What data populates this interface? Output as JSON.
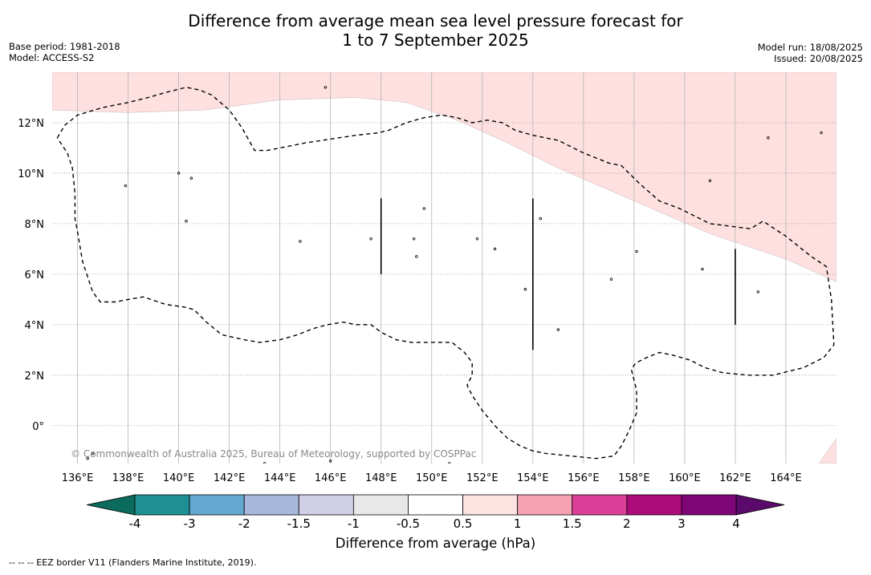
{
  "title_line1": "Difference from average mean sea level pressure forecast for",
  "title_line2": "1 to 7 September 2025",
  "base_period": "Base period: 1981-2018",
  "model": "Model: ACCESS-S2",
  "model_run": "Model run: 18/08/2025",
  "issued": "Issued: 20/08/2025",
  "copyright": "© Commonwealth of Australia 2025, Bureau of Meteorology, supported by COSPPac",
  "lon_labels": [
    "136°E",
    "138°E",
    "140°E",
    "142°E",
    "144°E",
    "146°E",
    "148°E",
    "150°E",
    "152°E",
    "154°E",
    "156°E",
    "158°E",
    "160°E",
    "162°E",
    "164°E"
  ],
  "lat_labels": [
    "12°N",
    "10°N",
    "8°N",
    "6°N",
    "4°N",
    "2°N",
    "0°"
  ],
  "colorbar": {
    "label": "Difference from average (hPa)",
    "ticks": [
      "-4",
      "-3",
      "-2",
      "-1.5",
      "-1",
      "-0.5",
      "0.5",
      "1",
      "1.5",
      "2",
      "3",
      "4"
    ],
    "colors": [
      "#1e9093",
      "#64a8d0",
      "#a7b8dc",
      "#cfd0e8",
      "#e8e8e8",
      "#ffffff",
      "#fde2e2",
      "#f7a1b4",
      "#dc3f98",
      "#ad0a7c",
      "#7e0575"
    ],
    "under_color": "#0b6b5c",
    "over_color": "#5a0a6a"
  },
  "legend_note": "--  --  -- EEZ border V11 (Flanders Marine Institute, 2019).",
  "map": {
    "lon_range": [
      135,
      166
    ],
    "lat_range": [
      -1.5,
      14
    ],
    "anomaly_fill_color": "#fde0df",
    "anomaly_region": [
      [
        135,
        12.5
      ],
      [
        138,
        12.4
      ],
      [
        141,
        12.5
      ],
      [
        144,
        12.9
      ],
      [
        147,
        13.0
      ],
      [
        149,
        12.8
      ],
      [
        151,
        12.1
      ],
      [
        153,
        11.2
      ],
      [
        155,
        10.2
      ],
      [
        158,
        8.9
      ],
      [
        161,
        7.6
      ],
      [
        164,
        6.6
      ],
      [
        166,
        5.7
      ],
      [
        166,
        14
      ],
      [
        135,
        14
      ]
    ],
    "anomaly_region_2": [
      [
        165.3,
        -1.5
      ],
      [
        166,
        -0.5
      ],
      [
        166,
        -1.5
      ]
    ],
    "eez_border": [
      [
        135.2,
        11.4
      ],
      [
        135.5,
        11.9
      ],
      [
        136,
        12.3
      ],
      [
        137,
        12.6
      ],
      [
        138,
        12.8
      ],
      [
        138.8,
        13.0
      ],
      [
        139.5,
        13.2
      ],
      [
        140.3,
        13.4
      ],
      [
        140.8,
        13.3
      ],
      [
        141.3,
        13.1
      ],
      [
        142,
        12.5
      ],
      [
        142.5,
        11.8
      ],
      [
        143,
        10.9
      ],
      [
        143.5,
        10.9
      ],
      [
        145,
        11.2
      ],
      [
        147,
        11.5
      ],
      [
        147.9,
        11.6
      ],
      [
        148.3,
        11.7
      ],
      [
        149,
        12.0
      ],
      [
        149.7,
        12.2
      ],
      [
        150.4,
        12.3
      ],
      [
        151,
        12.2
      ],
      [
        151.6,
        12.0
      ],
      [
        152.2,
        12.1
      ],
      [
        152.8,
        12.0
      ],
      [
        153.3,
        11.7
      ],
      [
        154,
        11.5
      ],
      [
        155,
        11.3
      ],
      [
        156,
        10.8
      ],
      [
        157,
        10.4
      ],
      [
        157.5,
        10.3
      ],
      [
        158.2,
        9.6
      ],
      [
        159,
        8.9
      ],
      [
        159.8,
        8.6
      ],
      [
        160.4,
        8.3
      ],
      [
        161,
        8.0
      ],
      [
        161.8,
        7.9
      ],
      [
        162.6,
        7.8
      ],
      [
        163.1,
        8.1
      ],
      [
        164,
        7.5
      ],
      [
        165,
        6.7
      ],
      [
        165.6,
        6.3
      ],
      [
        165.8,
        5.0
      ],
      [
        165.9,
        3.2
      ],
      [
        165.5,
        2.7
      ],
      [
        164.7,
        2.3
      ],
      [
        163.5,
        2.0
      ],
      [
        162.5,
        2.0
      ],
      [
        161.5,
        2.1
      ],
      [
        160.8,
        2.3
      ],
      [
        160.2,
        2.6
      ],
      [
        159.5,
        2.8
      ],
      [
        159,
        2.9
      ],
      [
        158.5,
        2.7
      ],
      [
        158.1,
        2.5
      ],
      [
        158,
        2.4
      ],
      [
        157.9,
        2.2
      ],
      [
        158.1,
        1.4
      ],
      [
        158.1,
        0.5
      ],
      [
        157.8,
        -0.2
      ],
      [
        157.5,
        -0.8
      ],
      [
        157.2,
        -1.2
      ],
      [
        156.5,
        -1.3
      ],
      [
        155.5,
        -1.2
      ],
      [
        154.5,
        -1.1
      ],
      [
        154,
        -1.0
      ],
      [
        153.5,
        -0.8
      ],
      [
        153,
        -0.5
      ],
      [
        152.5,
        -0.0
      ],
      [
        152,
        0.6
      ],
      [
        151.6,
        1.2
      ],
      [
        151.4,
        1.6
      ],
      [
        151.6,
        2.0
      ],
      [
        151.6,
        2.5
      ],
      [
        151.3,
        2.9
      ],
      [
        150.8,
        3.3
      ],
      [
        150.3,
        3.3
      ],
      [
        149.8,
        3.3
      ],
      [
        149.2,
        3.3
      ],
      [
        148.6,
        3.4
      ],
      [
        148,
        3.7
      ],
      [
        147.6,
        4.0
      ],
      [
        147,
        4.0
      ],
      [
        146.5,
        4.1
      ],
      [
        145.9,
        4.0
      ],
      [
        145.5,
        3.9
      ],
      [
        145.2,
        3.8
      ],
      [
        144.7,
        3.6
      ],
      [
        144,
        3.4
      ],
      [
        143.2,
        3.3
      ],
      [
        142.6,
        3.4
      ],
      [
        141.7,
        3.6
      ],
      [
        141.1,
        4.1
      ],
      [
        140.6,
        4.6
      ],
      [
        140.2,
        4.7
      ],
      [
        139.5,
        4.8
      ],
      [
        138.6,
        5.1
      ],
      [
        138,
        5.0
      ],
      [
        137.5,
        4.9
      ],
      [
        136.9,
        4.9
      ],
      [
        136.6,
        5.3
      ],
      [
        136.2,
        6.5
      ],
      [
        136,
        7.7
      ],
      [
        135.9,
        8.2
      ],
      [
        135.9,
        9.2
      ],
      [
        135.8,
        10.2
      ],
      [
        135.6,
        10.8
      ],
      [
        135.2,
        11.4
      ]
    ],
    "vertical_lines": [
      [
        148,
        6.0,
        9.0
      ],
      [
        154,
        3.0,
        9.0
      ],
      [
        162,
        4.0,
        7.0
      ]
    ],
    "islands": [
      [
        137.9,
        9.5
      ],
      [
        140.3,
        8.1
      ],
      [
        140.5,
        9.8
      ],
      [
        140.0,
        10.0
      ],
      [
        144.8,
        7.3
      ],
      [
        147.6,
        7.4
      ],
      [
        149.3,
        7.4
      ],
      [
        149.4,
        6.7
      ],
      [
        149.7,
        8.6
      ],
      [
        151.8,
        7.4
      ],
      [
        152.5,
        7.0
      ],
      [
        154.3,
        8.2
      ],
      [
        153.7,
        5.4
      ],
      [
        155.0,
        3.8
      ],
      [
        157.1,
        5.8
      ],
      [
        158.1,
        6.9
      ],
      [
        160.7,
        6.2
      ],
      [
        161.0,
        9.7
      ],
      [
        162.9,
        5.3
      ],
      [
        163.3,
        11.4
      ],
      [
        165.4,
        11.6
      ],
      [
        145.8,
        13.4
      ],
      [
        136.4,
        -1.3
      ],
      [
        136.6,
        -1.1
      ],
      [
        146.0,
        -1.4
      ],
      [
        150.7,
        -1.5
      ],
      [
        143.4,
        -1.5
      ]
    ]
  }
}
